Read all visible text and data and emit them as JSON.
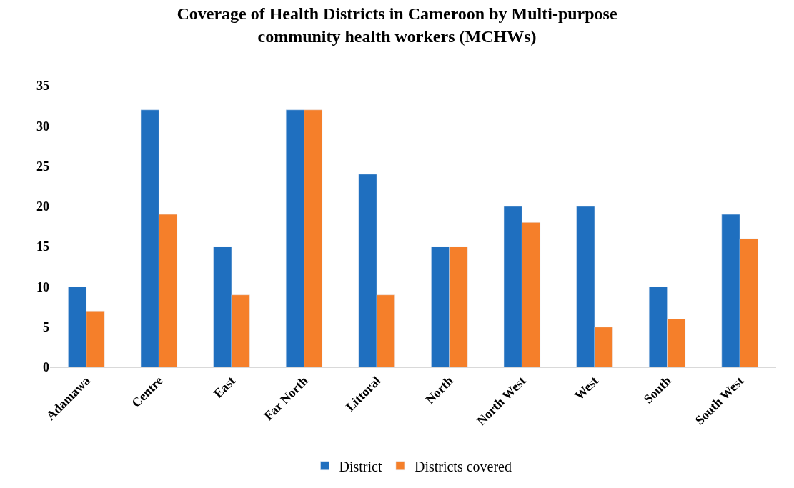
{
  "chart_data": {
    "type": "bar",
    "title": "Coverage of Health Districts in Cameroon by Multi-purpose community health workers (MCHWs)",
    "categories": [
      "Adamawa",
      "Centre",
      "East",
      "Far North",
      "Littoral",
      "North",
      "North West",
      "West",
      "South",
      "South West"
    ],
    "series": [
      {
        "name": "District",
        "color": "#1f6fbf",
        "values": [
          10,
          32,
          15,
          32,
          24,
          15,
          20,
          20,
          10,
          19
        ]
      },
      {
        "name": "Districts covered",
        "color": "#f57f2a",
        "values": [
          7,
          19,
          9,
          32,
          9,
          15,
          18,
          5,
          6,
          16
        ]
      }
    ],
    "ylim": [
      0,
      35
    ],
    "yticks": [
      0,
      5,
      10,
      15,
      20,
      25,
      30,
      35
    ],
    "grid": "y",
    "legend": "bottom"
  }
}
